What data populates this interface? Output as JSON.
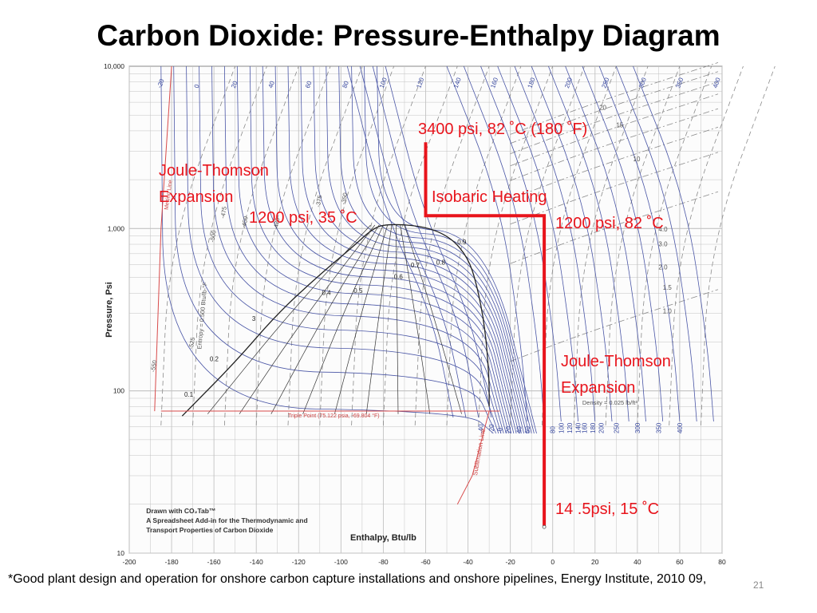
{
  "slide": {
    "title": "Carbon Dioxide: Pressure-Enthalpy Diagram",
    "footnote": "*Good plant design and operation for onshore carbon capture installations and onshore pipelines,  Energy Institute, 2010 09,",
    "slide_number": "21"
  },
  "colors": {
    "grid": "#c2c2c2",
    "isotherm": "#4a56a6",
    "dashed": "#8a8a8a",
    "dome": "#222222",
    "melting": "#d84a4a",
    "sublimation": "#d84a4a",
    "process_path": "#e8141c",
    "annotation": "#e8141c"
  },
  "chart_data": {
    "type": "line",
    "title": "",
    "xlabel": "Enthalpy, Btu/lb",
    "ylabel": "Pressure, Psi",
    "xlim": [
      -200,
      80
    ],
    "ylim": [
      10,
      10000
    ],
    "yscale": "log",
    "grid": true,
    "x_ticks": [
      "-200",
      "-180",
      "-160",
      "-140",
      "-120",
      "-100",
      "-80",
      "-60",
      "-40",
      "-20",
      "0",
      "20",
      "40",
      "60",
      "80"
    ],
    "y_ticks": [
      {
        "value": 10,
        "label": "10"
      },
      {
        "value": 100,
        "label": "100"
      },
      {
        "value": 1000,
        "label": "1,000"
      },
      {
        "value": 10000,
        "label": "10,000"
      }
    ],
    "saturation_dome": {
      "liquid": [
        [
          -175,
          70
        ],
        [
          -150,
          150
        ],
        [
          -130,
          300
        ],
        [
          -110,
          520
        ],
        [
          -95,
          760
        ],
        [
          -85,
          1000
        ],
        [
          -78,
          1070
        ]
      ],
      "vapor": [
        [
          -78,
          1070
        ],
        [
          -60,
          1030
        ],
        [
          -48,
          880
        ],
        [
          -40,
          660
        ],
        [
          -36,
          460
        ],
        [
          -32,
          250
        ],
        [
          -30,
          120
        ],
        [
          -30,
          80
        ]
      ]
    },
    "quality_labels": [
      {
        "label": "0.1",
        "x": -174,
        "y": 92
      },
      {
        "label": "0.2",
        "x": -162,
        "y": 152
      },
      {
        "label": "3",
        "x": -142,
        "y": 270
      },
      {
        "label": "0.4",
        "x": -109,
        "y": 390
      },
      {
        "label": "0.5",
        "x": -94,
        "y": 400
      },
      {
        "label": "0.6",
        "x": -75,
        "y": 490
      },
      {
        "label": "0.7",
        "x": -67,
        "y": 575
      },
      {
        "label": "0.8",
        "x": -55,
        "y": 600
      },
      {
        "label": "0.9",
        "x": -45,
        "y": 800
      }
    ],
    "isotherm_labels": [
      "-20",
      "0",
      "20",
      "40",
      "60",
      "80",
      "100",
      "120",
      "140",
      "160",
      "180",
      "200",
      "250",
      "300",
      "350",
      "400"
    ],
    "bottom_isotherm_labels": [
      {
        "label": "-40",
        "x": -34
      },
      {
        "label": "-20",
        "x": -29
      },
      {
        "label": "-0",
        "x": -25
      },
      {
        "label": "20",
        "x": -21
      },
      {
        "label": "40",
        "x": -16
      },
      {
        "label": "60",
        "x": -12
      },
      {
        "label": "80",
        "x": 0
      },
      {
        "label": "100",
        "x": 4
      },
      {
        "label": "120",
        "x": 8
      },
      {
        "label": "140",
        "x": 12
      },
      {
        "label": "160",
        "x": 15
      },
      {
        "label": "180",
        "x": 19
      },
      {
        "label": "200",
        "x": 23
      },
      {
        "label": "250",
        "x": 30
      },
      {
        "label": "300",
        "x": 40
      },
      {
        "label": "350",
        "x": 50
      },
      {
        "label": "400",
        "x": 60
      }
    ],
    "entropy_labels": [
      {
        "label": "-525",
        "x": -170,
        "y": 180
      },
      {
        "label": "-550",
        "x": -188,
        "y": 130
      },
      {
        "label": "-500",
        "x": -160,
        "y": 820
      },
      {
        "label": "-475",
        "x": -155,
        "y": 1150
      },
      {
        "label": "-450",
        "x": -145,
        "y": 1000
      },
      {
        "label": "-425",
        "x": -130,
        "y": 980
      },
      {
        "label": "-375",
        "x": -110,
        "y": 1350
      },
      {
        "label": "-350",
        "x": -98,
        "y": 1400
      }
    ],
    "density_labels": [
      {
        "label": "1.0",
        "x": 52,
        "y": 300
      },
      {
        "label": "1.5",
        "x": 52,
        "y": 420
      },
      {
        "label": "2.0",
        "x": 50,
        "y": 560
      },
      {
        "label": "3.0",
        "x": 50,
        "y": 780
      },
      {
        "label": "4.0",
        "x": 50,
        "y": 960
      },
      {
        "label": "10",
        "x": 38,
        "y": 2600
      },
      {
        "label": "15",
        "x": 30,
        "y": 4200
      },
      {
        "label": "20",
        "x": 22,
        "y": 5400
      }
    ],
    "triple_point_isobar": {
      "y": 75.1,
      "x": [
        -185,
        -25
      ]
    },
    "melting_line": [
      [
        -188,
        75
      ],
      [
        -185,
        1000
      ],
      [
        -180,
        10000
      ]
    ],
    "sublimation_line": [
      [
        -30,
        75
      ],
      [
        -38,
        30
      ],
      [
        -45,
        20
      ]
    ],
    "chart_annotations": {
      "triple_point": "Triple Point (75.122 psia, -69.804 °F)",
      "sublimation_line": "Sublimation Line",
      "melting_line": "Melting Line",
      "entropy": "Entropy = 0.500 Btu/lb-°F",
      "density": "Density = 0.025 lb/ft³",
      "credit": [
        "Drawn with CO₂Tab™",
        "A Spreadsheet Add-in for the Thermodynamic and",
        "Transport Properties of Carbon Dioxide"
      ]
    },
    "process_path": [
      {
        "x": -4,
        "y": 14.5
      },
      {
        "x": -4,
        "y": 1200
      },
      {
        "x": -60,
        "y": 1200
      },
      {
        "x": -60,
        "y": 3400
      }
    ],
    "process_annotations": [
      {
        "text": "3400 psi, 82 ˚C (180 ˚F)"
      },
      {
        "text": "Joule-Thomson"
      },
      {
        "text": "Expansion"
      },
      {
        "text": "Isobaric Heating"
      },
      {
        "text": "1200 psi, 35 ˚C"
      },
      {
        "text": "1200 psi, 82 ˚C"
      },
      {
        "text": "Joule-Thomson"
      },
      {
        "text": "Expansion"
      },
      {
        "text": "14 .5psi, 15 ˚C"
      }
    ]
  }
}
